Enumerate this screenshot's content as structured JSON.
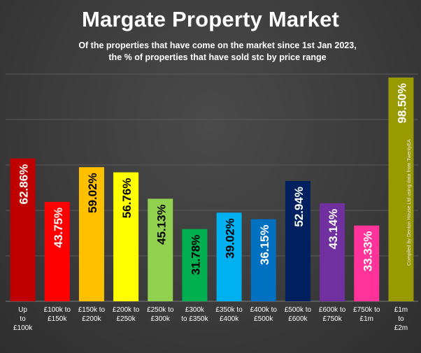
{
  "chart_data": {
    "type": "bar",
    "title": "Margate Property Market",
    "subtitle": [
      "Of the properties that have come on the market since 1st Jan 2023,",
      "the % of properties that have sold stc by price range"
    ],
    "xlabel": "",
    "ylabel": "",
    "ylim": [
      0,
      100
    ],
    "grid": true,
    "categories": [
      [
        "Up",
        "to",
        "£100k"
      ],
      [
        "£100k to",
        "£150k"
      ],
      [
        "£150k to",
        "£200k"
      ],
      [
        "£200k to",
        "£250k"
      ],
      [
        "£250k to",
        "£300k"
      ],
      [
        "£300k",
        "to £350k"
      ],
      [
        "£350k to",
        "£400k"
      ],
      [
        "£400k to",
        "£500k"
      ],
      [
        "£500k to",
        "£600k"
      ],
      [
        "£600k to",
        "£750k"
      ],
      [
        "£750k to",
        "£1m"
      ],
      [
        "£1m",
        "to",
        "£2m"
      ]
    ],
    "values": [
      62.86,
      43.75,
      59.02,
      56.76,
      45.13,
      31.78,
      39.02,
      36.15,
      52.94,
      43.14,
      33.33,
      98.5
    ],
    "data_labels": [
      "62.86%",
      "43.75%",
      "59.02%",
      "56.76%",
      "45.13%",
      "31.78%",
      "39.02%",
      "36.15%",
      "52.94%",
      "43.14%",
      "33.33%",
      "98.50%"
    ],
    "colors": [
      "#c00000",
      "#ff0000",
      "#ffc000",
      "#ffff00",
      "#92d050",
      "#00b050",
      "#00b0f0",
      "#0070c0",
      "#002060",
      "#7030a0",
      "#ff3399",
      "#999900"
    ],
    "label_colors": [
      "#ffffff",
      "#ffffff",
      "#000000",
      "#000000",
      "#000000",
      "#000000",
      "#000000",
      "#ffffff",
      "#ffffff",
      "#ffffff",
      "#ffffff",
      "#ffffff"
    ],
    "credit": "Compiled by Denton House Ltd using data from TwentyEA"
  }
}
